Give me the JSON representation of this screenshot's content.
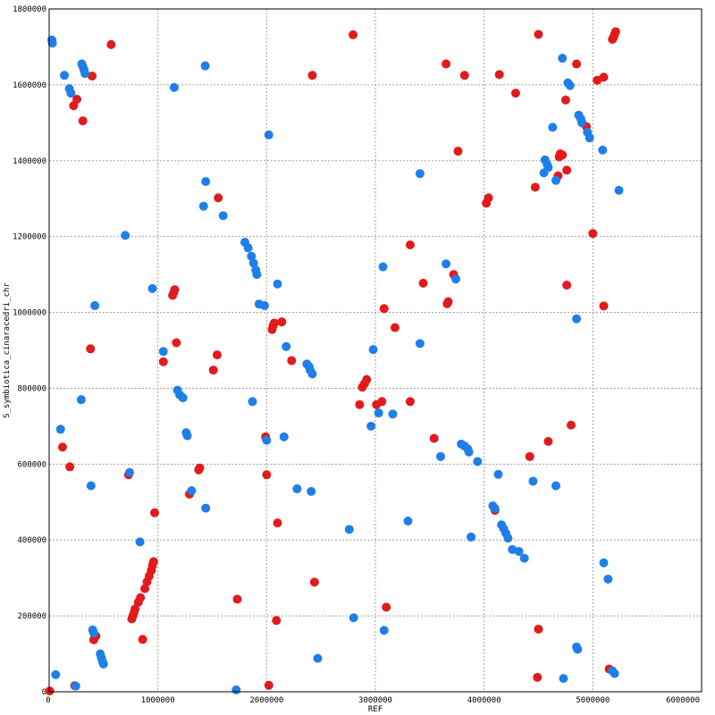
{
  "chart_data": {
    "type": "scatter",
    "title": "",
    "xlabel": "REF",
    "ylabel": "S_symbiotica_cinaracedri_chr",
    "xlim": [
      0,
      6000000
    ],
    "ylim": [
      0,
      1800000
    ],
    "x_ticks": [
      0,
      1000000,
      2000000,
      3000000,
      4000000,
      5000000,
      6000000
    ],
    "x_tick_labels": [
      "0",
      "1000000",
      "2000000",
      "3000000",
      "4000000",
      "5000000",
      "6000000"
    ],
    "y_ticks": [
      0,
      200000,
      400000,
      600000,
      800000,
      1000000,
      1200000,
      1400000,
      1600000,
      1800000
    ],
    "y_tick_labels": [
      "0",
      "200000",
      "400000",
      "600000",
      "800000",
      "1000000",
      "1200000",
      "1400000",
      "1600000",
      "1800000"
    ],
    "grid": true,
    "colors": {
      "forward": "#e31a1c",
      "reverse": "#1f7fe8"
    },
    "series": [
      {
        "color": "#e31a1c",
        "points": [
          [
            5000,
            2000
          ],
          [
            235000,
            16000
          ],
          [
            410000,
            137000
          ],
          [
            430000,
            147000
          ],
          [
            123000,
            645000
          ],
          [
            190000,
            593000
          ],
          [
            225000,
            1545000
          ],
          [
            255000,
            1562000
          ],
          [
            310000,
            1505000
          ],
          [
            395000,
            1623000
          ],
          [
            380000,
            904000
          ],
          [
            570000,
            1706000
          ],
          [
            730000,
            572000
          ],
          [
            760000,
            192000
          ],
          [
            770000,
            200000
          ],
          [
            780000,
            208000
          ],
          [
            790000,
            218000
          ],
          [
            820000,
            236000
          ],
          [
            840000,
            248000
          ],
          [
            880000,
            272000
          ],
          [
            900000,
            290000
          ],
          [
            920000,
            305000
          ],
          [
            940000,
            320000
          ],
          [
            950000,
            333000
          ],
          [
            960000,
            343000
          ],
          [
            970000,
            472000
          ],
          [
            860000,
            138000
          ],
          [
            1050000,
            870000
          ],
          [
            1135000,
            1045000
          ],
          [
            1145000,
            1052000
          ],
          [
            1155000,
            1060000
          ],
          [
            1170000,
            920000
          ],
          [
            1290000,
            521000
          ],
          [
            1375000,
            585000
          ],
          [
            1385000,
            590000
          ],
          [
            1510000,
            848000
          ],
          [
            1545000,
            888000
          ],
          [
            1555000,
            1302000
          ],
          [
            1730000,
            244000
          ],
          [
            1990000,
            672000
          ],
          [
            2000000,
            572000
          ],
          [
            2020000,
            17000
          ],
          [
            2050000,
            955000
          ],
          [
            2060000,
            965000
          ],
          [
            2070000,
            972000
          ],
          [
            2090000,
            188000
          ],
          [
            2100000,
            445000
          ],
          [
            2140000,
            975000
          ],
          [
            2230000,
            873000
          ],
          [
            2420000,
            1625000
          ],
          [
            2440000,
            289000
          ],
          [
            2795000,
            1732000
          ],
          [
            2855000,
            757000
          ],
          [
            2880000,
            803000
          ],
          [
            2900000,
            812000
          ],
          [
            2920000,
            823000
          ],
          [
            3010000,
            757000
          ],
          [
            3060000,
            765000
          ],
          [
            3080000,
            1010000
          ],
          [
            3100000,
            223000
          ],
          [
            3180000,
            960000
          ],
          [
            3320000,
            1178000
          ],
          [
            3320000,
            765000
          ],
          [
            3440000,
            1077000
          ],
          [
            3540000,
            668000
          ],
          [
            3650000,
            1655000
          ],
          [
            3660000,
            1023000
          ],
          [
            3670000,
            1028000
          ],
          [
            3720000,
            1100000
          ],
          [
            3760000,
            1425000
          ],
          [
            3820000,
            1625000
          ],
          [
            4020000,
            1288000
          ],
          [
            4040000,
            1302000
          ],
          [
            4100000,
            478000
          ],
          [
            4140000,
            1627000
          ],
          [
            4290000,
            1578000
          ],
          [
            4420000,
            620000
          ],
          [
            4470000,
            1330000
          ],
          [
            4490000,
            38000
          ],
          [
            4500000,
            1733000
          ],
          [
            4500000,
            165000
          ],
          [
            4590000,
            660000
          ],
          [
            4680000,
            1360000
          ],
          [
            4690000,
            1410000
          ],
          [
            4700000,
            1418000
          ],
          [
            4720000,
            1415000
          ],
          [
            4750000,
            1560000
          ],
          [
            4760000,
            1375000
          ],
          [
            4760000,
            1072000
          ],
          [
            4800000,
            703000
          ],
          [
            4850000,
            1655000
          ],
          [
            4940000,
            1490000
          ],
          [
            5000000,
            1208000
          ],
          [
            5040000,
            1612000
          ],
          [
            5100000,
            1620000
          ],
          [
            5100000,
            1017000
          ],
          [
            5150000,
            60000
          ],
          [
            5180000,
            1720000
          ],
          [
            5190000,
            1725000
          ],
          [
            5200000,
            1733000
          ],
          [
            5210000,
            1740000
          ]
        ]
      },
      {
        "color": "#1f7fe8",
        "points": [
          [
            25000,
            1718000
          ],
          [
            30000,
            1710000
          ],
          [
            60000,
            45000
          ],
          [
            105000,
            692000
          ],
          [
            140000,
            1625000
          ],
          [
            185000,
            1590000
          ],
          [
            200000,
            1578000
          ],
          [
            245000,
            15000
          ],
          [
            295000,
            770000
          ],
          [
            300000,
            1655000
          ],
          [
            310000,
            1648000
          ],
          [
            320000,
            1640000
          ],
          [
            330000,
            1630000
          ],
          [
            385000,
            543000
          ],
          [
            400000,
            163000
          ],
          [
            410000,
            155000
          ],
          [
            420000,
            1018000
          ],
          [
            470000,
            100000
          ],
          [
            480000,
            90000
          ],
          [
            490000,
            80000
          ],
          [
            500000,
            73000
          ],
          [
            700000,
            1203000
          ],
          [
            740000,
            578000
          ],
          [
            835000,
            395000
          ],
          [
            950000,
            1063000
          ],
          [
            1050000,
            897000
          ],
          [
            1150000,
            1593000
          ],
          [
            1180000,
            795000
          ],
          [
            1200000,
            783000
          ],
          [
            1230000,
            775000
          ],
          [
            1260000,
            683000
          ],
          [
            1270000,
            675000
          ],
          [
            1310000,
            530000
          ],
          [
            1420000,
            1280000
          ],
          [
            1435000,
            1650000
          ],
          [
            1440000,
            1345000
          ],
          [
            1440000,
            484000
          ],
          [
            1600000,
            1255000
          ],
          [
            1720000,
            5000
          ],
          [
            1800000,
            1185000
          ],
          [
            1830000,
            1170000
          ],
          [
            1860000,
            1148000
          ],
          [
            1880000,
            1130000
          ],
          [
            1900000,
            1112000
          ],
          [
            1910000,
            1100000
          ],
          [
            1870000,
            765000
          ],
          [
            1930000,
            1022000
          ],
          [
            1980000,
            1018000
          ],
          [
            2000000,
            663000
          ],
          [
            2020000,
            1468000
          ],
          [
            2100000,
            1075000
          ],
          [
            2160000,
            672000
          ],
          [
            2180000,
            910000
          ],
          [
            2280000,
            535000
          ],
          [
            2370000,
            864000
          ],
          [
            2390000,
            857000
          ],
          [
            2400000,
            848000
          ],
          [
            2420000,
            838000
          ],
          [
            2410000,
            528000
          ],
          [
            2470000,
            88000
          ],
          [
            2760000,
            428000
          ],
          [
            2800000,
            195000
          ],
          [
            2960000,
            700000
          ],
          [
            2980000,
            902000
          ],
          [
            3030000,
            735000
          ],
          [
            3070000,
            1120000
          ],
          [
            3080000,
            162000
          ],
          [
            3160000,
            732000
          ],
          [
            3300000,
            450000
          ],
          [
            3410000,
            1366000
          ],
          [
            3410000,
            918000
          ],
          [
            3600000,
            620000
          ],
          [
            3650000,
            1128000
          ],
          [
            3740000,
            1088000
          ],
          [
            3790000,
            653000
          ],
          [
            3820000,
            648000
          ],
          [
            3850000,
            640000
          ],
          [
            3860000,
            632000
          ],
          [
            3880000,
            408000
          ],
          [
            3940000,
            607000
          ],
          [
            4080000,
            490000
          ],
          [
            4100000,
            483000
          ],
          [
            4130000,
            573000
          ],
          [
            4160000,
            440000
          ],
          [
            4180000,
            430000
          ],
          [
            4200000,
            418000
          ],
          [
            4220000,
            405000
          ],
          [
            4260000,
            375000
          ],
          [
            4320000,
            370000
          ],
          [
            4370000,
            352000
          ],
          [
            4450000,
            555000
          ],
          [
            4550000,
            1368000
          ],
          [
            4560000,
            1402000
          ],
          [
            4580000,
            1390000
          ],
          [
            4590000,
            1382000
          ],
          [
            4630000,
            1488000
          ],
          [
            4660000,
            1348000
          ],
          [
            4660000,
            543000
          ],
          [
            4720000,
            1670000
          ],
          [
            4730000,
            35000
          ],
          [
            4770000,
            1605000
          ],
          [
            4790000,
            1598000
          ],
          [
            4850000,
            983000
          ],
          [
            4850000,
            118000
          ],
          [
            4860000,
            112000
          ],
          [
            4870000,
            1520000
          ],
          [
            4890000,
            1510000
          ],
          [
            4900000,
            1500000
          ],
          [
            4950000,
            1475000
          ],
          [
            4970000,
            1460000
          ],
          [
            5090000,
            1428000
          ],
          [
            5100000,
            340000
          ],
          [
            5140000,
            297000
          ],
          [
            5180000,
            55000
          ],
          [
            5200000,
            48000
          ],
          [
            5240000,
            1322000
          ]
        ]
      }
    ]
  }
}
